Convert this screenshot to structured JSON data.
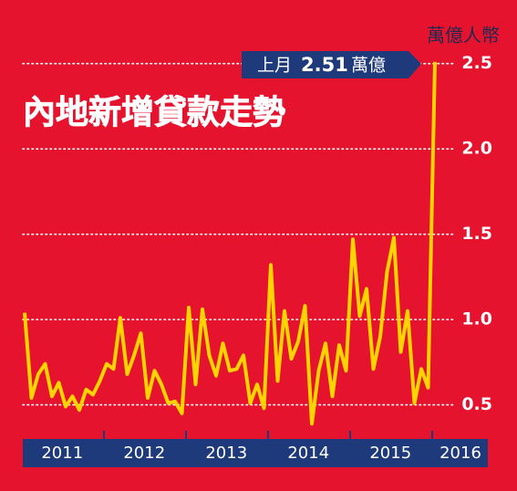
{
  "chart_data": {
    "type": "line",
    "title": "內地新增貸款走勢",
    "unit_label": "萬億人幣",
    "annotation": {
      "before": "上月",
      "after": "萬億"
    },
    "year_labels": [
      "2011",
      "2012",
      "2013",
      "2014",
      "2015",
      "2016"
    ],
    "color": "#ffd400",
    "values": [
      1.04,
      0.54,
      0.68,
      0.74,
      0.55,
      0.63,
      0.49,
      0.55,
      0.47,
      0.59,
      0.56,
      0.64,
      0.74,
      0.71,
      1.01,
      0.68,
      0.79,
      0.92,
      0.54,
      0.7,
      0.62,
      0.51,
      0.52,
      0.45,
      1.07,
      0.62,
      1.06,
      0.79,
      0.67,
      0.86,
      0.7,
      0.71,
      0.79,
      0.51,
      0.62,
      0.48,
      1.32,
      0.64,
      1.05,
      0.77,
      0.87,
      1.08,
      0.39,
      0.7,
      0.86,
      0.55,
      0.85,
      0.7,
      1.47,
      1.02,
      1.18,
      0.71,
      0.9,
      1.28,
      1.48,
      0.81,
      1.05,
      0.51,
      0.71,
      0.6,
      2.51
    ],
    "ylim": [
      0.3,
      2.6
    ],
    "yticks": [
      0.5,
      {
        "value": 1,
        "label": "1.0"
      },
      1.5,
      {
        "value": 2,
        "label": "2.0"
      },
      2.5
    ],
    "grid": true
  }
}
